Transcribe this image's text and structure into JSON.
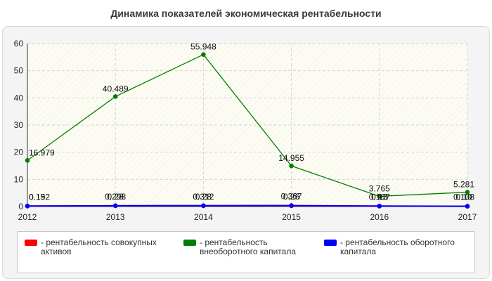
{
  "title": "Динамика показателей экономическая рентабельности",
  "chart_data": {
    "type": "line",
    "categories": [
      "2012",
      "2013",
      "2014",
      "2015",
      "2016",
      "2017"
    ],
    "ylim": [
      0,
      60
    ],
    "yticks": [
      0,
      10,
      20,
      30,
      40,
      50,
      60
    ],
    "grid": true,
    "legend_position": "bottom",
    "series": [
      {
        "name": "- рентабельность совокупных активов",
        "color": "#ff0000",
        "values": [
          0.15,
          0.28,
          0.28,
          0.26,
          0.13,
          0.1
        ],
        "labels": [
          "0.15",
          "0.28",
          "0.28",
          "0.26",
          "0.13",
          "0.10"
        ]
      },
      {
        "name": "- рентабельность внеоборотного капитала",
        "color": "#008000",
        "values": [
          16.979,
          40.489,
          55.948,
          14.955,
          3.765,
          5.281
        ],
        "labels": [
          "16.979",
          "40.489",
          "55.948",
          "14.955",
          "3.765",
          "5.281"
        ]
      },
      {
        "name": "- рентабельность оборотного капитала",
        "color": "#0000ff",
        "values": [
          0.192,
          0.298,
          0.312,
          0.367,
          0.187,
          0.108
        ],
        "labels": [
          "0.192",
          "0.298",
          "0.312",
          "0.367",
          "0.187",
          "0.108"
        ]
      }
    ]
  }
}
